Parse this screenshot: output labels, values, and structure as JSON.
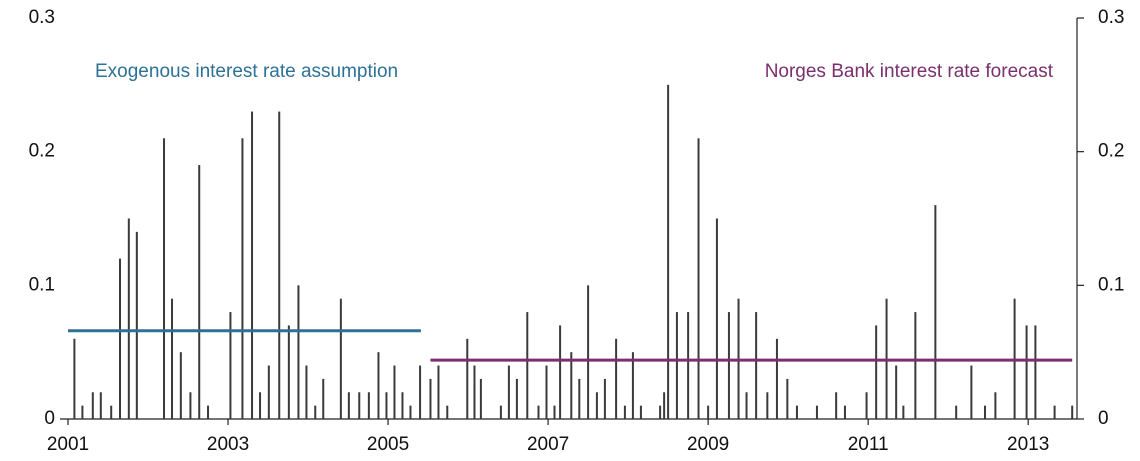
{
  "chart_data": {
    "type": "bar",
    "x": [
      2001.08,
      2001.18,
      2001.31,
      2001.41,
      2001.54,
      2001.65,
      2001.76,
      2001.86,
      2002.2,
      2002.3,
      2002.41,
      2002.53,
      2002.64,
      2002.75,
      2003.03,
      2003.18,
      2003.3,
      2003.4,
      2003.51,
      2003.64,
      2003.76,
      2003.88,
      2003.98,
      2004.09,
      2004.19,
      2004.41,
      2004.51,
      2004.64,
      2004.76,
      2004.88,
      2004.98,
      2005.08,
      2005.18,
      2005.28,
      2005.4,
      2005.53,
      2005.63,
      2005.74,
      2005.99,
      2006.08,
      2006.16,
      2006.41,
      2006.51,
      2006.61,
      2006.74,
      2006.88,
      2006.98,
      2007.08,
      2007.15,
      2007.29,
      2007.39,
      2007.5,
      2007.61,
      2007.71,
      2007.85,
      2007.96,
      2008.06,
      2008.16,
      2008.4,
      2008.45,
      2008.5,
      2008.61,
      2008.75,
      2008.88,
      2009.0,
      2009.11,
      2009.26,
      2009.38,
      2009.48,
      2009.6,
      2009.74,
      2009.86,
      2009.99,
      2010.11,
      2010.36,
      2010.6,
      2010.71,
      2010.98,
      2011.1,
      2011.23,
      2011.35,
      2011.44,
      2011.59,
      2011.84,
      2012.1,
      2012.29,
      2012.46,
      2012.59,
      2012.83,
      2012.98,
      2013.09,
      2013.33,
      2013.55
    ],
    "values": [
      0.06,
      0.01,
      0.02,
      0.02,
      0.01,
      0.12,
      0.15,
      0.14,
      0.21,
      0.09,
      0.05,
      0.02,
      0.19,
      0.01,
      0.08,
      0.21,
      0.23,
      0.02,
      0.04,
      0.23,
      0.07,
      0.1,
      0.04,
      0.01,
      0.03,
      0.09,
      0.02,
      0.02,
      0.02,
      0.05,
      0.02,
      0.04,
      0.02,
      0.01,
      0.04,
      0.03,
      0.04,
      0.01,
      0.06,
      0.04,
      0.03,
      0.01,
      0.04,
      0.03,
      0.08,
      0.01,
      0.04,
      0.01,
      0.07,
      0.05,
      0.03,
      0.1,
      0.02,
      0.03,
      0.06,
      0.01,
      0.05,
      0.01,
      0.01,
      0.02,
      0.25,
      0.08,
      0.08,
      0.21,
      0.01,
      0.15,
      0.08,
      0.09,
      0.02,
      0.08,
      0.02,
      0.06,
      0.03,
      0.01,
      0.01,
      0.02,
      0.01,
      0.02,
      0.07,
      0.09,
      0.04,
      0.01,
      0.08,
      0.16,
      0.01,
      0.04,
      0.01,
      0.02,
      0.09,
      0.07,
      0.07,
      0.01,
      0.01
    ],
    "color": "#3a3a3a",
    "lines": [
      {
        "name": "Exogenous interest rate assumption",
        "color": "#2e7196",
        "x": [
          2001,
          2005.41
        ],
        "values": [
          0.066,
          0.066
        ]
      },
      {
        "name": "Norges Bank interest rate forecast",
        "color": "#7b2f6e",
        "x": [
          2005.53,
          2013.55
        ],
        "values": [
          0.044,
          0.044
        ]
      }
    ],
    "xlim": [
      2001,
      2013.61
    ],
    "ylim": [
      0,
      0.3
    ],
    "xticks": [
      2001,
      2003,
      2005,
      2007,
      2009,
      2011,
      2013
    ],
    "yticks": [
      0,
      0.1,
      0.2,
      0.3
    ]
  }
}
